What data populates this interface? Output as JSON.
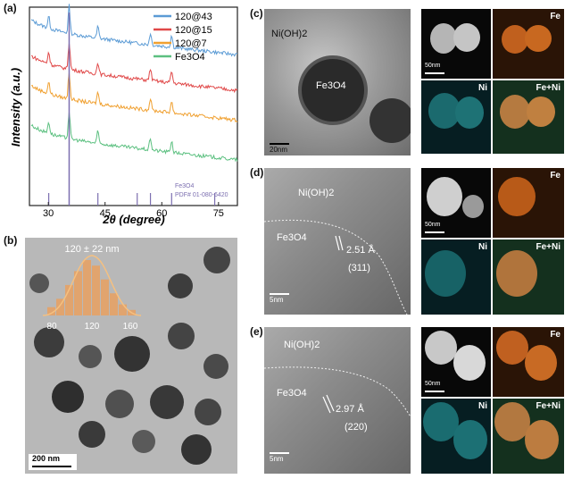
{
  "panel_labels": {
    "a": "(a)",
    "b": "(b)",
    "c": "(c)",
    "d": "(d)",
    "e": "(e)"
  },
  "xrd": {
    "ylabel": "Intensity (a.u.)",
    "xlabel": "2θ (degree)",
    "xticks": [
      "30",
      "45",
      "60",
      "75"
    ],
    "legend": [
      {
        "name": "120@43",
        "color": "#5b9bd5"
      },
      {
        "name": "120@15",
        "color": "#e04848"
      },
      {
        "name": "120@7",
        "color": "#f0a030"
      },
      {
        "name": "Fe3O4",
        "color": "#5cc080"
      }
    ],
    "reference_label_1": "Fe3O4",
    "reference_label_2": "PDF# 01-080-6420"
  },
  "chart_data": {
    "type": "line",
    "xlabel": "2θ (degree)",
    "ylabel": "Intensity (a.u.)",
    "xlim": [
      25,
      80
    ],
    "xticks": [
      30,
      45,
      60,
      75
    ],
    "series": [
      {
        "name": "120@43",
        "baseline": 0.88,
        "color": "#5b9bd5"
      },
      {
        "name": "120@15",
        "baseline": 0.7,
        "color": "#e04848"
      },
      {
        "name": "120@7",
        "baseline": 0.55,
        "color": "#f0a030"
      },
      {
        "name": "Fe3O4",
        "baseline": 0.35,
        "color": "#5cc080"
      }
    ],
    "peaks_2theta": [
      30.1,
      35.5,
      43.1,
      57.0,
      62.6
    ],
    "reference_sticks": [
      30.1,
      35.5,
      43.1,
      53.5,
      57.0,
      62.6,
      74.0
    ]
  },
  "histogram": {
    "title": "120 ± 22 nm",
    "ticks": [
      "80",
      "120",
      "160"
    ],
    "bar_heights": [
      0.15,
      0.3,
      0.55,
      0.8,
      1.0,
      0.9,
      0.65,
      0.4,
      0.2,
      0.1
    ]
  },
  "panel_b": {
    "scale": "200 nm"
  },
  "panel_c": {
    "label_ni": "Ni(OH)2",
    "label_fe": "Fe3O4",
    "scale_main": "20nm",
    "scale_map": "50nm",
    "map_fe": "Fe",
    "map_ni": "Ni",
    "map_feni": "Fe+Ni"
  },
  "panel_d": {
    "label_ni": "Ni(OH)2",
    "label_fe": "Fe3O4",
    "spacing": "2.51 Å",
    "plane": "(311)",
    "scale_main": "5nm",
    "scale_map": "50nm",
    "map_fe": "Fe",
    "map_ni": "Ni",
    "map_feni": "Fe+Ni"
  },
  "panel_e": {
    "label_ni": "Ni(OH)2",
    "label_fe": "Fe3O4",
    "spacing": "2.97 Å",
    "plane": "(220)",
    "scale_main": "5nm",
    "scale_map": "50nm",
    "map_fe": "Fe",
    "map_ni": "Ni",
    "map_feni": "Fe+Ni"
  }
}
